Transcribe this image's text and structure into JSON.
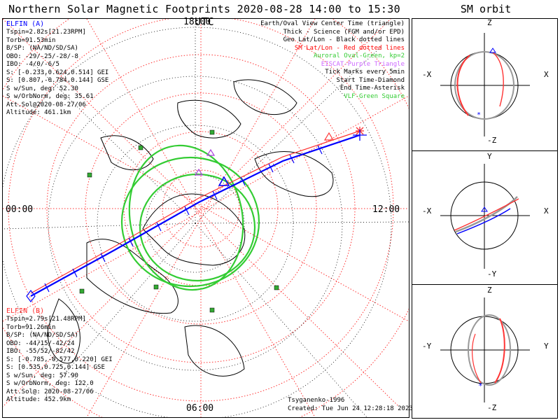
{
  "title": "Northern Solar Magnetic Footprints 2020-08-28 14:00 to 15:30 UTC",
  "orbit_title": "SM orbit",
  "map": {
    "hour_labels": {
      "top": "18:00",
      "left": "00:00",
      "right": "12:00",
      "bottom": "06:00"
    },
    "elfin_a": {
      "name": "ELFIN (A)",
      "color": "#0000ff",
      "lines": [
        "Tspin=2.82s[21.23RPM]",
        "Torb=91.53min",
        "B/SP: (NA/ND/SD/SA)",
        "OBO: -29/-25/-28/-8",
        "IBO: -4/0/-6/5",
        "S: [-0.233,0.624,0.514] GEI",
        "S: [0.807,-0.784,0.144] GSE",
        "S w/Sun, deg: 52.30",
        "S w/OrbNorm, deg: 35.61",
        "Att.Sol@2020-08-27/06",
        "Altitude: 461.1km"
      ]
    },
    "elfin_b": {
      "name": "ELFIN (B)",
      "color": "#ff0000",
      "lines": [
        "Tspin=2.79s[21.48RPM]",
        "Torb=91.26min",
        "B/SP: (NA/ND/SD/SA)",
        "OBO: -44/15/-42/24",
        "IBO: -55/52/-82/42",
        "S: [-0.785,-0.577,0.220] GEI",
        "S: [0.535,0.725,0.144] GSE",
        "S w/Sun, deg: 57.90",
        "S w/OrbNorm, deg: 122.0",
        "Att.Sol@: 2020-08-27/06",
        "Altitude: 452.9km"
      ]
    },
    "legend": [
      {
        "text": "Earth/Oval View Center Time (triangle)",
        "color": "#000000"
      },
      {
        "text": "Thick - Science (FGM and/or EPD)",
        "color": "#000000"
      },
      {
        "text": "Geo Lat/Lon - Black dotted lines",
        "color": "#000000"
      },
      {
        "text": "SM Lat/Lon - Red dotted lines",
        "color": "#ff0000"
      },
      {
        "text": "Auroral Oval-Green, kp=2",
        "color": "#33cc33"
      },
      {
        "text": "EISCAT-Purple Triangle",
        "color": "#cc66ff"
      },
      {
        "text": "Tick Marks every 5min",
        "color": "#000000"
      },
      {
        "text": "Start Time-Diamond",
        "color": "#000000"
      },
      {
        "text": "End Time-Asterisk",
        "color": "#000000"
      },
      {
        "text": "VLF-Green Square",
        "color": "#33cc33"
      }
    ],
    "credit": "Tsyganenko-1996",
    "created": "Created: Tue Jun 24 12:28:18 2023"
  },
  "orbit_panels": [
    {
      "top": "Z",
      "bottom": "-Z",
      "left": "-X",
      "right": "X"
    },
    {
      "top": "Y",
      "bottom": "-Y",
      "left": "-X",
      "right": "X"
    },
    {
      "top": "Z",
      "bottom": "-Z",
      "left": "-Y",
      "right": "Y"
    }
  ],
  "chart_data": {
    "type": "map",
    "title": "Northern Solar Magnetic Footprints 2020-08-28 14:00 to 15:30 UTC",
    "projection": "polar (SM coordinates), north up = 18:00 MLT",
    "mlt_labels": [
      "18:00",
      "00:00",
      "12:00",
      "06:00"
    ],
    "series": [
      {
        "name": "ELFIN (A)",
        "color": "#0000ff"
      },
      {
        "name": "ELFIN (B)",
        "color": "#ff0000"
      }
    ],
    "sm_orbit_panels": [
      "X-Z",
      "X-Y",
      "Y-Z"
    ]
  }
}
